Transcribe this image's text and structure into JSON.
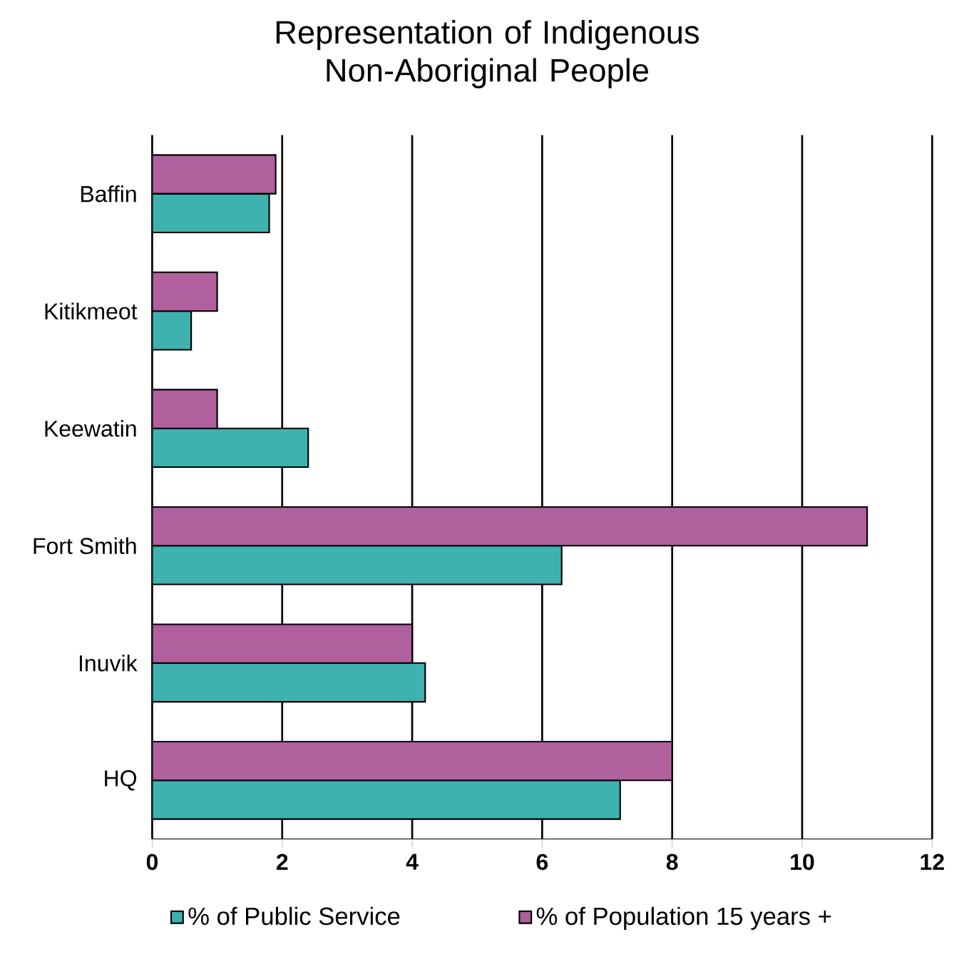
{
  "chart_data": {
    "type": "bar",
    "orientation": "horizontal",
    "title": "Representation of Indigenous Non-Aboriginal People",
    "categories": [
      "Baffin",
      "Kitikmeot",
      "Keewatin",
      "Fort Smith",
      "Inuvik",
      "HQ"
    ],
    "series": [
      {
        "name": "% of Public Service",
        "color": "#3fb2b0",
        "values": [
          1.8,
          0.6,
          2.4,
          6.3,
          4.2,
          7.2
        ]
      },
      {
        "name": "% of Population 15 years +",
        "color": "#b0609c",
        "values": [
          1.9,
          1.0,
          1.0,
          11.0,
          4.0,
          8.0
        ]
      }
    ],
    "xlim": [
      0,
      12
    ],
    "xticks": [
      0,
      2,
      4,
      6,
      8,
      10,
      12
    ],
    "grid": "x",
    "legend": "bottom"
  }
}
